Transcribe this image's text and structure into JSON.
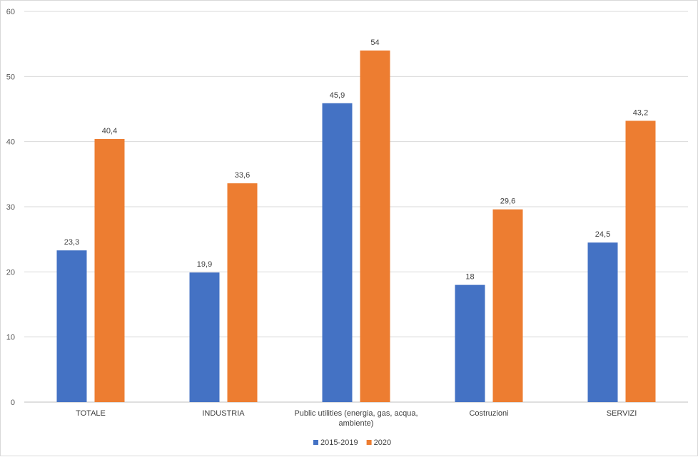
{
  "chart_data": {
    "type": "bar",
    "title": "",
    "xlabel": "",
    "ylabel": "",
    "ylim": [
      0,
      60
    ],
    "yticks": [
      "0",
      "10",
      "20",
      "30",
      "40",
      "50",
      "60"
    ],
    "grid": true,
    "legend_position": "bottom",
    "categories": [
      [
        "TOTALE"
      ],
      [
        "INDUSTRIA"
      ],
      [
        "Public utilities (energia, gas, acqua,",
        "ambiente)"
      ],
      [
        "Costruzioni"
      ],
      [
        "SERVIZI"
      ]
    ],
    "series": [
      {
        "name": "2015-2019",
        "color": "#4472C4",
        "values": [
          23.3,
          19.9,
          45.9,
          18,
          24.5
        ],
        "labels": [
          "23,3",
          "19,9",
          "45,9",
          "18",
          "24,5"
        ]
      },
      {
        "name": "2020",
        "color": "#ED7D31",
        "values": [
          40.4,
          33.6,
          54,
          29.6,
          43.2
        ],
        "labels": [
          "40,4",
          "33,6",
          "54",
          "29,6",
          "43,2"
        ]
      }
    ]
  }
}
